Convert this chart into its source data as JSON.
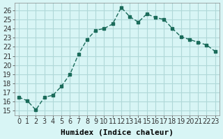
{
  "x": [
    0,
    1,
    2,
    3,
    4,
    5,
    6,
    7,
    8,
    9,
    10,
    11,
    12,
    13,
    14,
    15,
    16,
    17,
    18,
    19,
    20,
    21,
    22,
    23
  ],
  "y": [
    16.5,
    16.1,
    15.1,
    16.5,
    16.7,
    17.7,
    19.0,
    21.2,
    22.8,
    23.8,
    24.0,
    24.5,
    26.3,
    25.3,
    24.7,
    25.6,
    25.2,
    25.0,
    24.0,
    23.1,
    22.8,
    22.5,
    22.2,
    21.5
  ],
  "line_color": "#1a6b5a",
  "marker_color": "#1a6b5a",
  "bg_color": "#d8f5f5",
  "grid_color": "#b0d8d8",
  "xlabel": "Humidex (Indice chaleur)",
  "ylabel_ticks": [
    15,
    16,
    17,
    18,
    19,
    20,
    21,
    22,
    23,
    24,
    25,
    26
  ],
  "ylim": [
    14.5,
    26.8
  ],
  "xlim": [
    -0.5,
    23.5
  ],
  "xlabel_fontsize": 8,
  "tick_fontsize": 7
}
